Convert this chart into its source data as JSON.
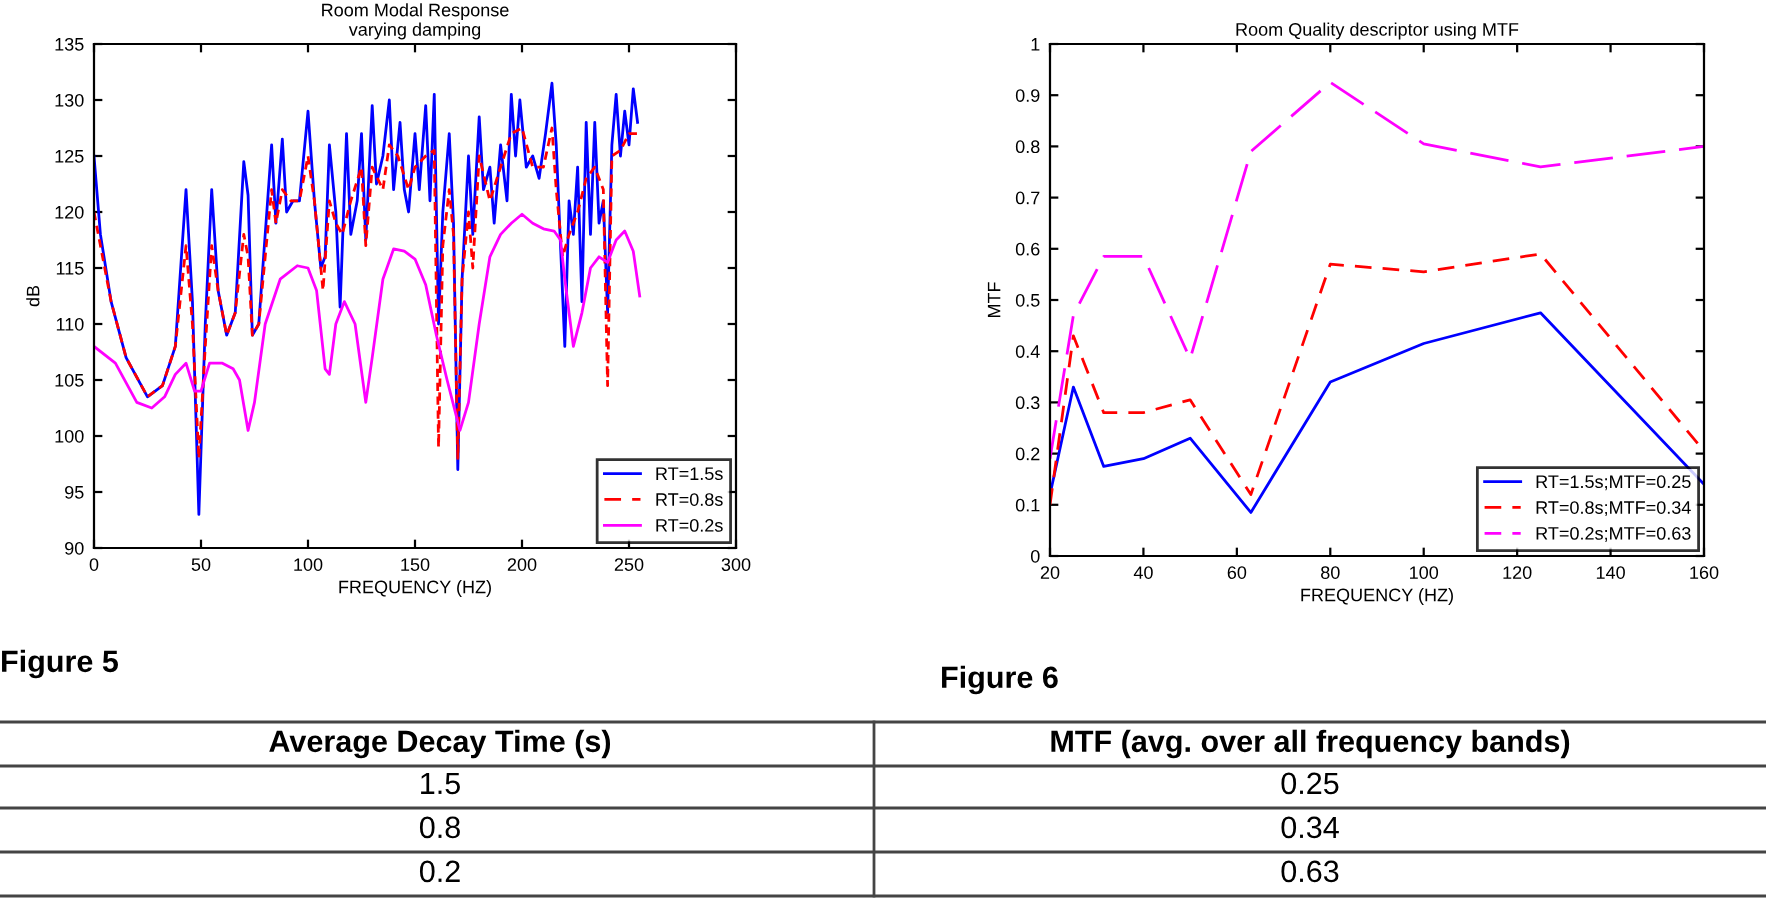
{
  "chart_data": [
    {
      "type": "line",
      "title": "Room Modal Response\nvarying damping",
      "xlabel": "FREQUENCY (HZ)",
      "ylabel": "dB",
      "xlim": [
        0,
        300
      ],
      "xticks": [
        0,
        50,
        100,
        150,
        200,
        250,
        300
      ],
      "ylim": [
        90,
        135
      ],
      "yticks": [
        90,
        95,
        100,
        105,
        110,
        115,
        120,
        125,
        130,
        135
      ],
      "legend": "bottom right",
      "grid": false,
      "series": [
        {
          "name": "RT=1.5s",
          "color": "#0000ff",
          "line_style": "solid",
          "x": [
            0,
            3,
            8,
            15,
            25,
            32,
            38,
            43,
            46,
            49,
            52,
            55,
            58,
            62,
            66,
            70,
            72,
            74,
            77,
            80,
            83,
            85,
            88,
            90,
            93,
            96,
            100,
            103,
            106,
            108,
            110,
            113,
            115,
            118,
            120,
            123,
            125,
            127,
            130,
            132,
            135,
            138,
            140,
            143,
            145,
            147,
            150,
            152,
            155,
            157,
            159,
            161,
            163,
            166,
            168,
            170,
            172,
            175,
            177,
            180,
            182,
            185,
            187,
            190,
            193,
            195,
            197,
            199,
            202,
            205,
            208,
            211,
            214,
            216,
            218,
            220,
            222,
            224,
            226,
            228,
            230,
            232,
            234,
            236,
            238,
            240,
            242,
            244,
            246,
            248,
            250,
            252,
            254
          ],
          "values": [
            125,
            118,
            112,
            107,
            103.5,
            104.5,
            108,
            122,
            112,
            93,
            110,
            122,
            113,
            109,
            111,
            124.5,
            121.5,
            109,
            110,
            118,
            126,
            119,
            126.5,
            120,
            121,
            121,
            129,
            121,
            115,
            116,
            126,
            120,
            111.5,
            127,
            118,
            121,
            127,
            117.5,
            129.5,
            122.5,
            125,
            130,
            122,
            128,
            122,
            120,
            127,
            122,
            129.5,
            121,
            130.5,
            110,
            120,
            127,
            119,
            97,
            114,
            125,
            118,
            128.5,
            122,
            124,
            119,
            126,
            121,
            130.5,
            125,
            130,
            124,
            125,
            123,
            127,
            131.5,
            126,
            117,
            108,
            121,
            118,
            124,
            112,
            128,
            118,
            128,
            119,
            121,
            111,
            126,
            130.5,
            125,
            129,
            126,
            131,
            128
          ]
        },
        {
          "name": "RT=0.8s",
          "color": "#ff0000",
          "line_style": "dashed",
          "x": [
            0,
            3,
            8,
            15,
            25,
            32,
            38,
            43,
            46,
            49,
            52,
            55,
            58,
            62,
            66,
            70,
            72,
            74,
            77,
            80,
            83,
            85,
            88,
            92,
            96,
            100,
            103,
            107,
            110,
            113,
            116,
            120,
            125,
            127,
            130,
            135,
            138,
            142,
            147,
            150,
            155,
            159,
            161,
            163,
            166,
            168,
            170,
            172,
            175,
            177,
            180,
            185,
            190,
            195,
            200,
            205,
            210,
            214,
            216,
            219,
            222,
            226,
            230,
            234,
            238,
            240,
            242,
            246,
            250,
            254
          ],
          "values": [
            120,
            117,
            112,
            107,
            103.5,
            104.5,
            108,
            117,
            110,
            98,
            108,
            117,
            113,
            109,
            111,
            118,
            116,
            109,
            110,
            116,
            122,
            119,
            122,
            121,
            121,
            125,
            121,
            113,
            121,
            119,
            118,
            121,
            124,
            117,
            124,
            122,
            126,
            125,
            122,
            124,
            125,
            125.5,
            99,
            117,
            122,
            118,
            98,
            114,
            120,
            115,
            125,
            121,
            124,
            127,
            127.5,
            124,
            124,
            127.5,
            122,
            116,
            118,
            120,
            123,
            124,
            122,
            104.5,
            125,
            125.5,
            127,
            127
          ]
        },
        {
          "name": "RT=0.2s",
          "color": "#ff00ff",
          "line_style": "solid",
          "x": [
            0,
            10,
            20,
            27,
            33,
            38,
            43,
            47,
            50,
            54,
            60,
            65,
            68,
            72,
            75,
            80,
            87,
            95,
            100,
            104,
            108,
            110,
            113,
            117,
            122,
            127,
            130,
            135,
            140,
            145,
            150,
            155,
            160,
            165,
            171,
            175,
            180,
            185,
            190,
            195,
            200,
            205,
            210,
            215,
            218,
            220,
            224,
            228,
            232,
            236,
            240,
            244,
            248,
            252,
            255
          ],
          "values": [
            108,
            106.5,
            103,
            102.5,
            103.5,
            105.5,
            106.5,
            104,
            104,
            106.5,
            106.5,
            106,
            105,
            100.5,
            103,
            110,
            114,
            115.2,
            115,
            113,
            106,
            105.5,
            110,
            112,
            110,
            103,
            107,
            114,
            116.7,
            116.5,
            115.8,
            113.5,
            109,
            105,
            100.5,
            103,
            110,
            116,
            118,
            119,
            119.8,
            119,
            118.5,
            118.3,
            117.5,
            114,
            108,
            111,
            115,
            116,
            115.5,
            117.5,
            118.3,
            116.5,
            112.5
          ]
        }
      ],
      "annotations": [
        "Figure 5"
      ]
    },
    {
      "type": "line",
      "title": "Room Quality descriptor using MTF",
      "xlabel": "FREQUENCY (HZ)",
      "ylabel": "MTF",
      "xlim": [
        20,
        160
      ],
      "xticks": [
        20,
        40,
        60,
        80,
        100,
        120,
        140,
        160
      ],
      "ylim": [
        0,
        1
      ],
      "yticks": [
        0,
        0.1,
        0.2,
        0.3,
        0.4,
        0.5,
        0.6,
        0.7,
        0.8,
        0.9,
        1
      ],
      "legend": "bottom right",
      "grid": false,
      "x": [
        20,
        25,
        31.5,
        40,
        50,
        63,
        80,
        100,
        125,
        160
      ],
      "series": [
        {
          "name": "RT=1.5s;MTF=0.25",
          "color": "#0000ff",
          "line_style": "solid",
          "values": [
            0.12,
            0.33,
            0.175,
            0.19,
            0.23,
            0.085,
            0.34,
            0.415,
            0.475,
            0.14
          ]
        },
        {
          "name": "RT=0.8s;MTF=0.34",
          "color": "#ff0000",
          "line_style": "dashed",
          "values": [
            0.1,
            0.43,
            0.28,
            0.28,
            0.305,
            0.12,
            0.57,
            0.555,
            0.59,
            0.205
          ]
        },
        {
          "name": "RT=0.2s;MTF=0.63",
          "color": "#ff00ff",
          "line_style": "dashed",
          "values": [
            0.19,
            0.47,
            0.585,
            0.585,
            0.385,
            0.79,
            0.925,
            0.805,
            0.76,
            0.8
          ]
        }
      ],
      "annotations": [
        "Figure 6",
        "Average Decay Time (s)",
        "MTF (avg. over all frequency bands)",
        "1.5",
        "0.25",
        "0.8",
        "0.34",
        "0.2",
        "0.63"
      ]
    }
  ]
}
